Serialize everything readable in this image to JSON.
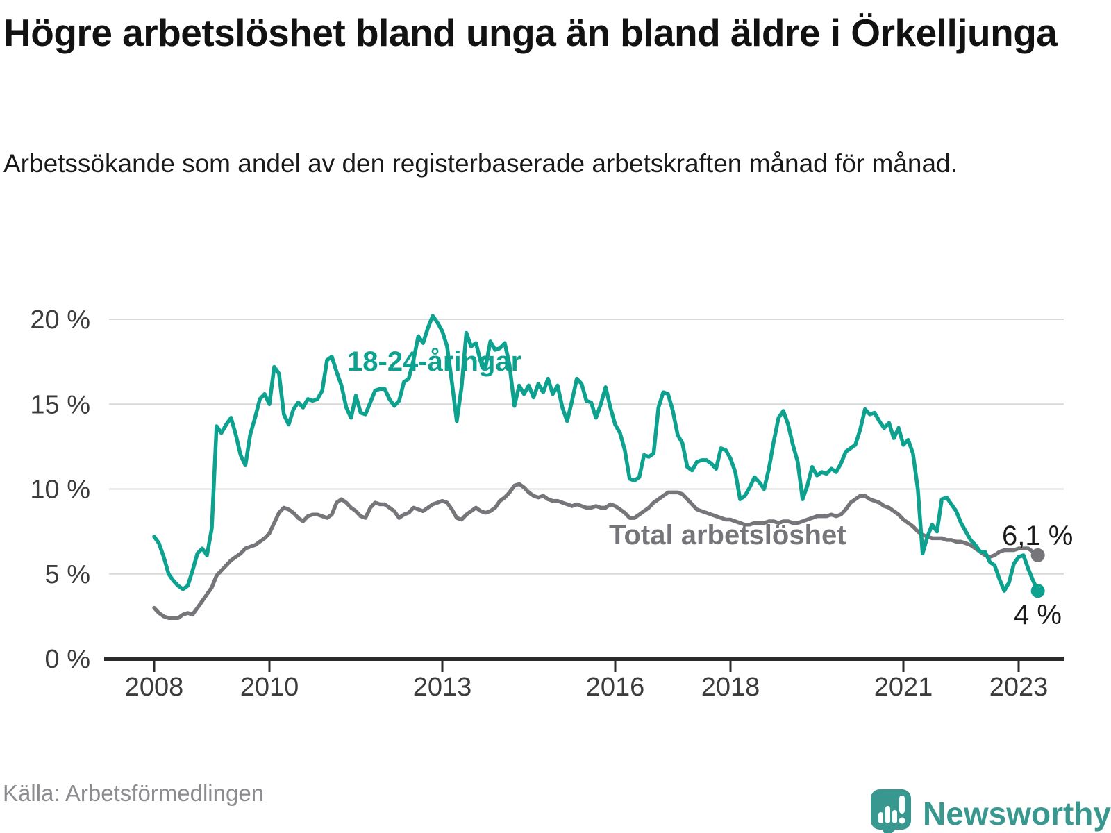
{
  "title": "Högre arbetslöshet bland unga än bland äldre i Örkelljunga",
  "subtitle": "Arbetssökande som andel av den registerbaserade arbetskraften månad för månad.",
  "source": "Källa: Arbetsförmedlingen",
  "brand": {
    "name": "Newsworthy",
    "icon": "newsworthy-speech-bubble-bar-chart-icon"
  },
  "annotations": {
    "young_series_label": "18-24-åringar",
    "total_series_label": "Total arbetslöshet",
    "total_end_value": "6,1 %",
    "young_end_value": "4 %"
  },
  "colors": {
    "young_line": "#0DA18F",
    "total_line": "#76767A",
    "grid": "#D9D9D9",
    "axis": "#2B2B2B",
    "tick_text": "#3C3C3C",
    "annotation_text": "#1A1A1A",
    "source_text": "#8C8C90",
    "brand_teal": "#38988F"
  },
  "chart_data": {
    "type": "line",
    "title": "Högre arbetslöshet bland unga än bland äldre i Örkelljunga",
    "xlabel": "",
    "ylabel": "",
    "x_start_year": 2008,
    "x_start_month": 1,
    "x_end_year": 2023,
    "x_end_month": 5,
    "points_per_year": 12,
    "ylim": [
      0,
      21
    ],
    "grid": "horizontal",
    "legend_position": "inline-labels",
    "yticks": [
      {
        "value": 0,
        "label": "0 %"
      },
      {
        "value": 5,
        "label": "5 %"
      },
      {
        "value": 10,
        "label": "10 %"
      },
      {
        "value": 15,
        "label": "15 %"
      },
      {
        "value": 20,
        "label": "20 %"
      }
    ],
    "xticks": [
      {
        "year": 2008,
        "label": "2008"
      },
      {
        "year": 2010,
        "label": "2010"
      },
      {
        "year": 2013,
        "label": "2013"
      },
      {
        "year": 2016,
        "label": "2016"
      },
      {
        "year": 2018,
        "label": "2018"
      },
      {
        "year": 2021,
        "label": "2021"
      },
      {
        "year": 2023,
        "label": "2023"
      }
    ],
    "series": [
      {
        "name": "Total arbetslöshet",
        "color": "#76767A",
        "end_value": 6.1,
        "values": [
          3.0,
          2.7,
          2.5,
          2.4,
          2.4,
          2.4,
          2.6,
          2.7,
          2.6,
          3.0,
          3.4,
          3.8,
          4.2,
          4.9,
          5.2,
          5.5,
          5.8,
          6.0,
          6.2,
          6.5,
          6.6,
          6.7,
          6.9,
          7.1,
          7.4,
          8.0,
          8.6,
          8.9,
          8.8,
          8.6,
          8.3,
          8.1,
          8.4,
          8.5,
          8.5,
          8.4,
          8.3,
          8.5,
          9.2,
          9.4,
          9.2,
          8.9,
          8.7,
          8.4,
          8.3,
          8.9,
          9.2,
          9.1,
          9.1,
          8.9,
          8.7,
          8.3,
          8.5,
          8.6,
          8.9,
          8.8,
          8.7,
          8.9,
          9.1,
          9.2,
          9.3,
          9.2,
          8.8,
          8.3,
          8.2,
          8.5,
          8.7,
          8.9,
          8.7,
          8.6,
          8.7,
          8.9,
          9.3,
          9.5,
          9.8,
          10.2,
          10.3,
          10.1,
          9.8,
          9.6,
          9.5,
          9.6,
          9.4,
          9.3,
          9.3,
          9.2,
          9.1,
          9.0,
          9.1,
          9.0,
          8.9,
          8.9,
          9.0,
          8.9,
          8.9,
          9.1,
          9.0,
          8.8,
          8.6,
          8.3,
          8.3,
          8.5,
          8.7,
          8.9,
          9.2,
          9.4,
          9.6,
          9.8,
          9.8,
          9.8,
          9.7,
          9.4,
          9.1,
          8.8,
          8.7,
          8.6,
          8.5,
          8.4,
          8.3,
          8.2,
          8.2,
          8.1,
          8.0,
          7.9,
          7.9,
          8.0,
          8.0,
          8.0,
          8.1,
          8.1,
          8.0,
          8.1,
          8.1,
          8.0,
          8.0,
          8.1,
          8.2,
          8.3,
          8.4,
          8.4,
          8.4,
          8.5,
          8.4,
          8.5,
          8.8,
          9.2,
          9.4,
          9.6,
          9.6,
          9.4,
          9.3,
          9.2,
          9.0,
          8.9,
          8.7,
          8.5,
          8.2,
          8.0,
          7.8,
          7.5,
          7.3,
          7.2,
          7.1,
          7.1,
          7.1,
          7.0,
          7.0,
          6.9,
          6.9,
          6.8,
          6.7,
          6.5,
          6.3,
          6.1,
          6.0,
          6.1,
          6.3,
          6.4,
          6.4,
          6.4,
          6.5,
          6.5,
          6.5,
          6.3,
          6.1
        ]
      },
      {
        "name": "18-24-åringar",
        "color": "#0DA18F",
        "end_value": 4.0,
        "values": [
          7.2,
          6.8,
          6.0,
          5.0,
          4.6,
          4.3,
          4.1,
          4.3,
          5.2,
          6.2,
          6.5,
          6.1,
          7.7,
          13.7,
          13.3,
          13.8,
          14.2,
          13.2,
          12.0,
          11.4,
          13.2,
          14.2,
          15.3,
          15.6,
          15.0,
          17.2,
          16.8,
          14.4,
          13.8,
          14.7,
          15.1,
          14.8,
          15.3,
          15.2,
          15.3,
          15.8,
          17.6,
          17.8,
          16.9,
          16.1,
          14.8,
          14.2,
          15.5,
          14.5,
          14.4,
          15.1,
          15.8,
          15.9,
          15.9,
          15.3,
          14.9,
          15.2,
          16.3,
          16.5,
          17.6,
          19.0,
          18.6,
          19.5,
          20.2,
          19.8,
          19.3,
          18.4,
          16.3,
          14.0,
          16.0,
          19.2,
          18.4,
          18.6,
          17.5,
          17.2,
          18.7,
          18.2,
          18.3,
          18.6,
          17.3,
          14.9,
          16.1,
          15.6,
          16.1,
          15.4,
          16.2,
          15.7,
          16.5,
          15.6,
          16.1,
          14.8,
          14.0,
          15.2,
          16.5,
          16.2,
          15.2,
          15.1,
          14.2,
          15.0,
          16.0,
          14.8,
          13.8,
          13.3,
          12.3,
          10.6,
          10.5,
          10.7,
          12.0,
          11.9,
          12.1,
          14.8,
          15.7,
          15.6,
          14.6,
          13.2,
          12.7,
          11.3,
          11.1,
          11.6,
          11.7,
          11.7,
          11.5,
          11.2,
          12.4,
          12.3,
          11.8,
          11.0,
          9.4,
          9.6,
          10.1,
          10.7,
          10.4,
          10.0,
          11.2,
          12.8,
          14.2,
          14.6,
          13.8,
          12.6,
          11.6,
          9.4,
          10.2,
          11.3,
          10.8,
          11.0,
          10.9,
          11.2,
          11.0,
          11.5,
          12.2,
          12.4,
          12.6,
          13.5,
          14.7,
          14.4,
          14.5,
          14.0,
          13.6,
          13.9,
          13.0,
          13.6,
          12.6,
          12.9,
          12.1,
          10.0,
          6.2,
          7.2,
          7.9,
          7.5,
          9.4,
          9.5,
          9.1,
          8.7,
          8.0,
          7.5,
          7.0,
          6.7,
          6.3,
          6.3,
          5.7,
          5.5,
          4.7,
          4.0,
          4.5,
          5.6,
          6.0,
          6.1,
          5.3,
          4.6,
          4.0
        ]
      }
    ]
  }
}
